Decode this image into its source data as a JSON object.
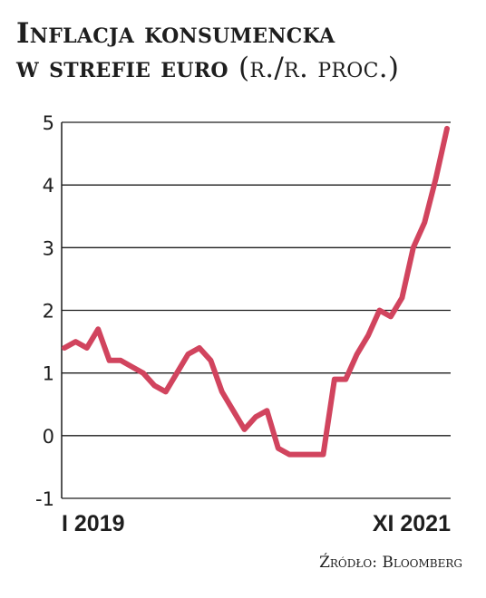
{
  "title": {
    "line1": "Inflacja konsumencka",
    "line2": "w strefie euro",
    "unit": "(r./r. proc.)"
  },
  "source": "Źródło: Bloomberg",
  "colors": {
    "line": "#d1445e",
    "grid": "#1e1e1e",
    "text": "#1e1e1e"
  },
  "chart_data": {
    "type": "line",
    "title": "Inflacja konsumencka w strefie euro (r./r. proc.)",
    "xlabel": "",
    "ylabel": "",
    "x_tick_labels": [
      "I 2019",
      "XI 2021"
    ],
    "y_ticks": [
      -1,
      0,
      1,
      2,
      3,
      4,
      5
    ],
    "ylim": [
      -1,
      5
    ],
    "grid": true,
    "series": [
      {
        "name": "",
        "x": [
          "2019-01",
          "2019-02",
          "2019-03",
          "2019-04",
          "2019-05",
          "2019-06",
          "2019-07",
          "2019-08",
          "2019-09",
          "2019-10",
          "2019-11",
          "2019-12",
          "2020-01",
          "2020-02",
          "2020-03",
          "2020-04",
          "2020-05",
          "2020-06",
          "2020-07",
          "2020-08",
          "2020-09",
          "2020-10",
          "2020-11",
          "2020-12",
          "2021-01",
          "2021-02",
          "2021-03",
          "2021-04",
          "2021-05",
          "2021-06",
          "2021-07",
          "2021-08",
          "2021-09",
          "2021-10",
          "2021-11"
        ],
        "values": [
          1.4,
          1.5,
          1.4,
          1.7,
          1.2,
          1.2,
          1.1,
          1.0,
          0.8,
          0.7,
          1.0,
          1.3,
          1.4,
          1.2,
          0.7,
          0.4,
          0.1,
          0.3,
          0.4,
          -0.2,
          -0.3,
          -0.3,
          -0.3,
          -0.3,
          0.9,
          0.9,
          1.3,
          1.6,
          2.0,
          1.9,
          2.2,
          3.0,
          3.4,
          4.1,
          4.9
        ]
      }
    ]
  }
}
